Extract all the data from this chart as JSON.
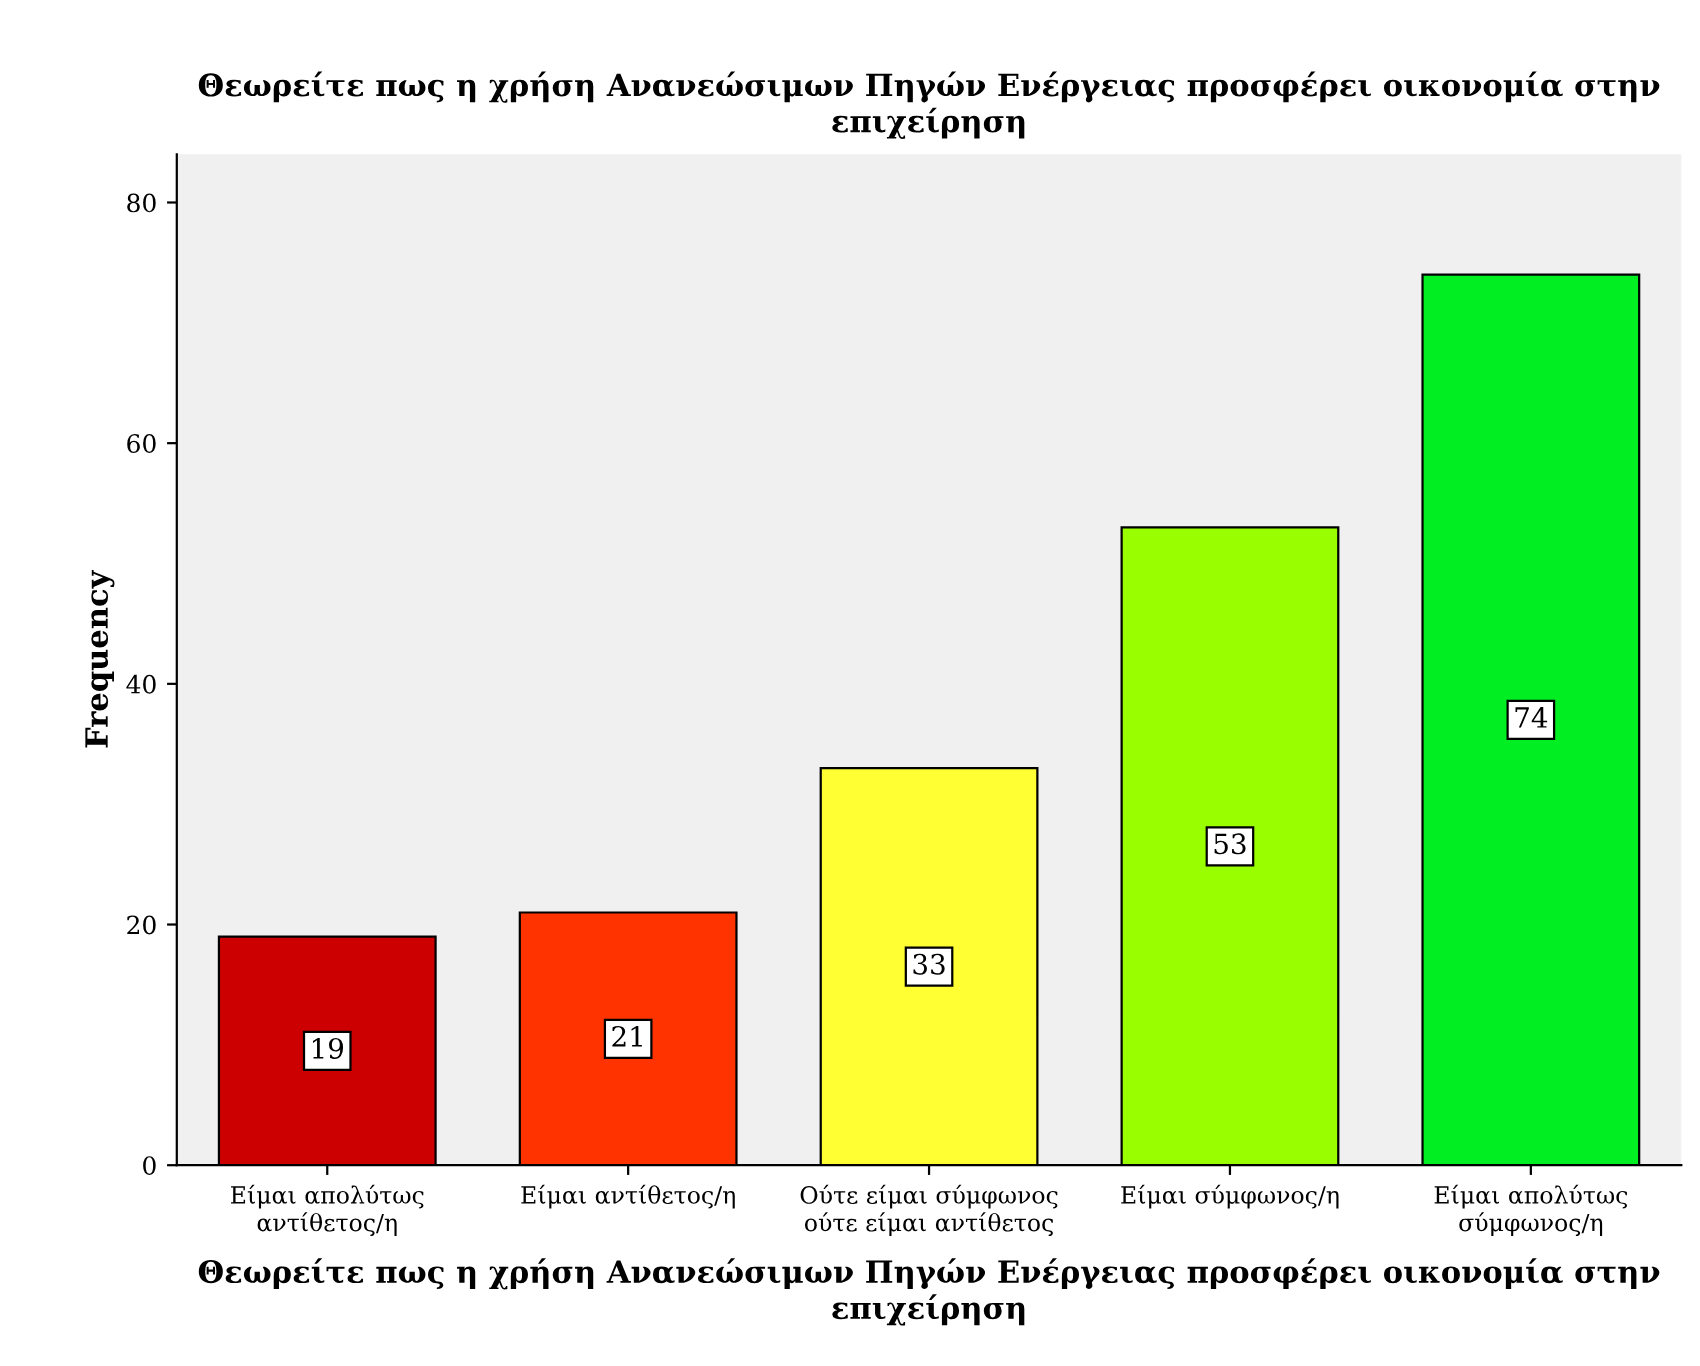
{
  "chart_data": {
    "type": "bar",
    "title": "Θεωρείτε πως η χρήση Ανανεώσιμων Πηγών Ενέργειας προσφέρει οικονομία στην\nεπιχείρηση",
    "xlabel": "Θεωρείτε πως η χρήση Ανανεώσιμων Πηγών Ενέργειας προσφέρει οικονομία στην\nεπιχείρηση",
    "ylabel": "Frequency",
    "categories": [
      "Είμαι απολύτως\nαντίθετος/η",
      "Είμαι αντίθετος/η",
      "Ούτε είμαι σύμφωνος\nούτε είμαι αντίθετος",
      "Είμαι σύμφωνος/η",
      "Είμαι απολύτως\nσύμφωνος/η"
    ],
    "values": [
      19,
      21,
      33,
      53,
      74
    ],
    "colors": [
      "#cc0000",
      "#ff3300",
      "#ffff33",
      "#99ff00",
      "#00ee22"
    ],
    "ylim": [
      0,
      84
    ],
    "yticks": [
      0,
      20,
      40,
      60,
      80
    ],
    "data_labels": true,
    "grid": false,
    "legend": false
  }
}
